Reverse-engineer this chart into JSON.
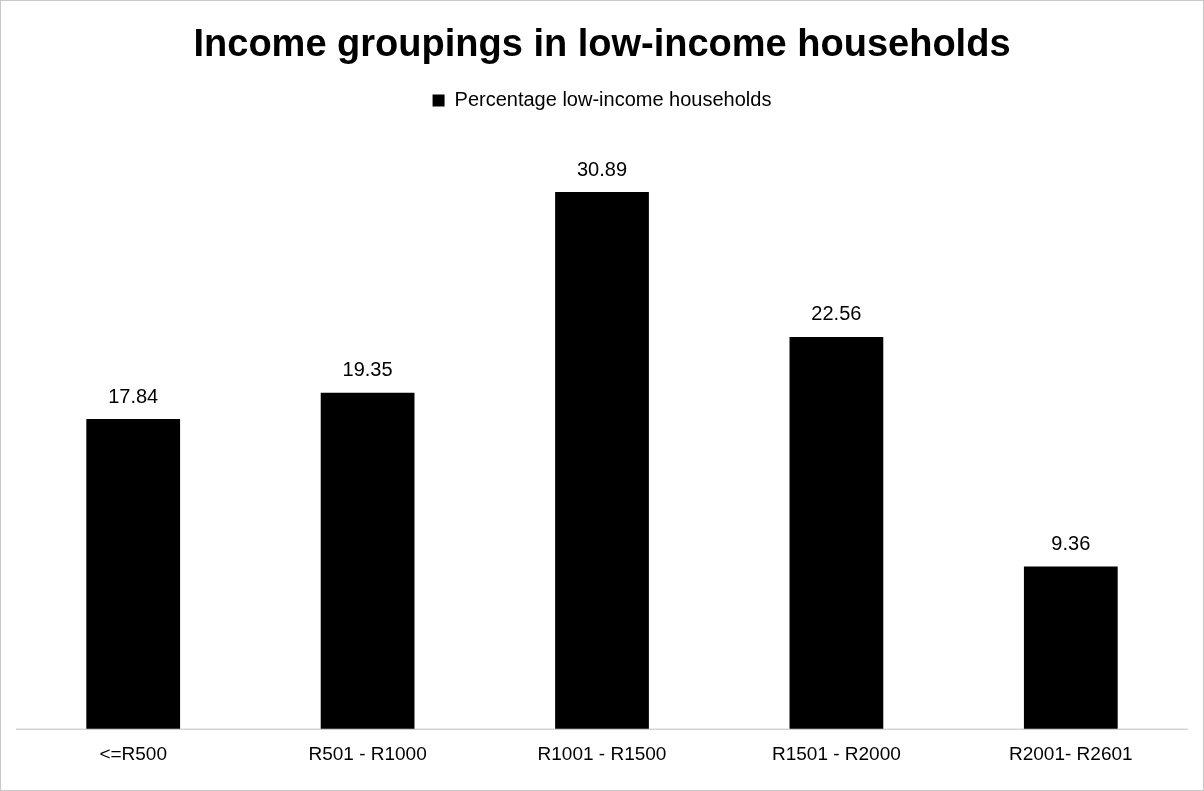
{
  "chart_data": {
    "type": "bar",
    "title": "Income groupings in low-income households",
    "categories": [
      "<=R500",
      "R501 - R1000",
      "R1001 - R1500",
      "R1501 - R2000",
      "R2001- R2601"
    ],
    "series": [
      {
        "name": "Percentage low-income households",
        "color": "#000000",
        "values": [
          17.84,
          19.35,
          30.89,
          22.56,
          9.36
        ]
      }
    ],
    "data_labels": true,
    "legend": "top",
    "grid": false
  }
}
